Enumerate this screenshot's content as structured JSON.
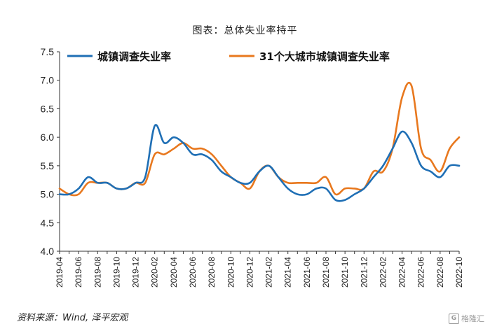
{
  "header": {
    "title": "图表：总体失业率持平"
  },
  "footer": {
    "source": "资料来源：Wind, 泽平宏观",
    "watermark": "格隆汇"
  },
  "chart_data": {
    "type": "line",
    "title": "图表：总体失业率持平",
    "xlabel": "",
    "ylabel": "",
    "ylim": [
      4.0,
      7.5
    ],
    "yticks": [
      4.0,
      4.5,
      5.0,
      5.5,
      6.0,
      6.5,
      7.0,
      7.5
    ],
    "x": [
      "2019-04",
      "2019-05",
      "2019-06",
      "2019-07",
      "2019-08",
      "2019-09",
      "2019-10",
      "2019-11",
      "2019-12",
      "2020-01",
      "2020-02",
      "2020-03",
      "2020-04",
      "2020-05",
      "2020-06",
      "2020-07",
      "2020-08",
      "2020-09",
      "2020-10",
      "2020-11",
      "2020-12",
      "2021-01",
      "2021-02",
      "2021-03",
      "2021-04",
      "2021-05",
      "2021-06",
      "2021-07",
      "2021-08",
      "2021-09",
      "2021-10",
      "2021-11",
      "2021-12",
      "2022-01",
      "2022-02",
      "2022-03",
      "2022-04",
      "2022-05",
      "2022-06",
      "2022-07",
      "2022-08",
      "2022-09",
      "2022-10"
    ],
    "xtick_labels": [
      "2019-04",
      "2019-06",
      "2019-08",
      "2019-10",
      "2019-12",
      "2020-02",
      "2020-04",
      "2020-06",
      "2020-08",
      "2020-10",
      "2020-12",
      "2021-02",
      "2021-04",
      "2021-06",
      "2021-08",
      "2021-10",
      "2021-12",
      "2022-02",
      "2022-04",
      "2022-06",
      "2022-08",
      "2022-10"
    ],
    "legend_position": "top",
    "grid": false,
    "series": [
      {
        "name": "城镇调查失业率",
        "color": "#1f6fb5",
        "values": [
          5.0,
          5.0,
          5.1,
          5.3,
          5.2,
          5.2,
          5.1,
          5.1,
          5.2,
          5.3,
          6.2,
          5.9,
          6.0,
          5.9,
          5.7,
          5.7,
          5.6,
          5.4,
          5.3,
          5.2,
          5.2,
          5.4,
          5.5,
          5.3,
          5.1,
          5.0,
          5.0,
          5.1,
          5.1,
          4.9,
          4.9,
          5.0,
          5.1,
          5.3,
          5.5,
          5.8,
          6.1,
          5.9,
          5.5,
          5.4,
          5.3,
          5.5,
          5.5
        ]
      },
      {
        "name": "31个大城市城镇调查失业率",
        "color": "#e8781e",
        "values": [
          5.1,
          5.0,
          5.0,
          5.2,
          5.2,
          5.2,
          5.1,
          5.1,
          5.2,
          5.2,
          5.7,
          5.7,
          5.8,
          5.9,
          5.8,
          5.8,
          5.7,
          5.5,
          5.3,
          5.2,
          5.1,
          5.4,
          5.5,
          5.3,
          5.2,
          5.2,
          5.2,
          5.2,
          5.3,
          5.0,
          5.1,
          5.1,
          5.1,
          5.4,
          5.4,
          5.8,
          6.7,
          6.9,
          5.8,
          5.6,
          5.4,
          5.8,
          6.0
        ]
      }
    ]
  }
}
